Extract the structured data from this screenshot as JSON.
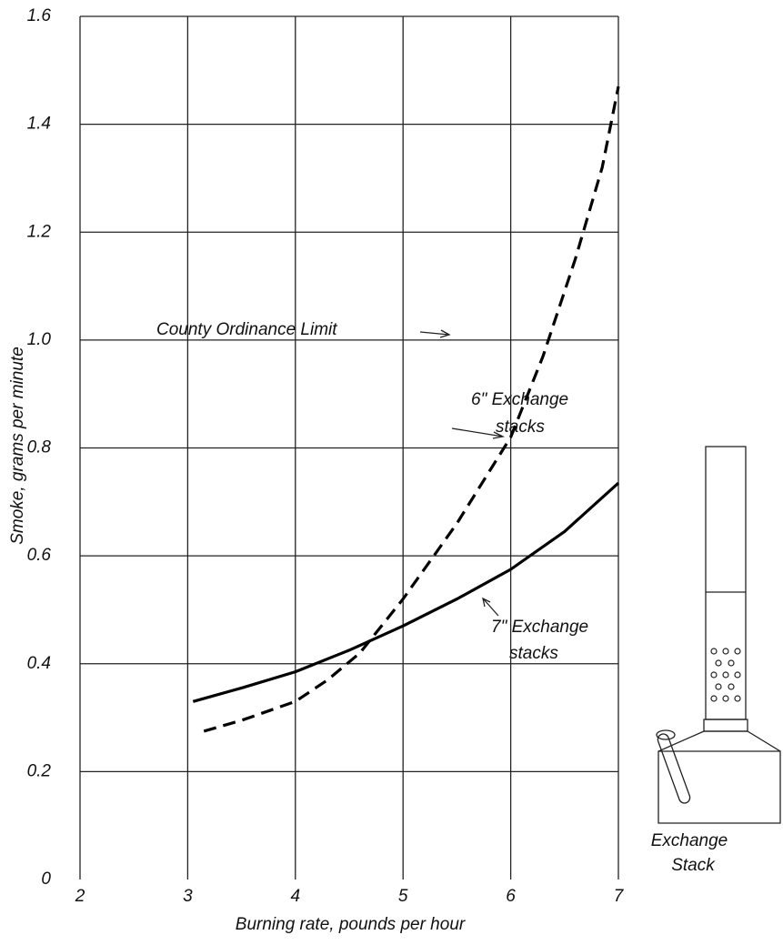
{
  "chart_data": {
    "type": "line",
    "x_label": "Burning rate, pounds per hour",
    "y_label": "Smoke, grams per minute",
    "xlim": [
      2,
      7
    ],
    "xticks": [
      2,
      3,
      4,
      5,
      6,
      7
    ],
    "ylim": [
      0,
      1.6
    ],
    "yticks": [
      0,
      0.2,
      0.4,
      0.6,
      0.8,
      {
        "value": 1,
        "label": "1.0"
      },
      1.2,
      1.4,
      1.6
    ],
    "grid": true,
    "series": [
      {
        "style": "solid",
        "color": "#000000",
        "x": [
          3.05,
          3.5,
          4,
          4.5,
          5,
          5.5,
          6,
          6.5,
          7
        ],
        "values": [
          0.33,
          0.355,
          0.385,
          0.425,
          0.47,
          0.52,
          0.575,
          0.645,
          0.735
        ]
      },
      {
        "style": "dashed",
        "color": "#000000",
        "x": [
          3.15,
          3.5,
          4,
          4.3,
          4.6,
          5,
          5.5,
          6,
          6.3,
          6.6,
          6.85,
          7
        ],
        "values": [
          0.275,
          0.295,
          0.33,
          0.37,
          0.42,
          0.52,
          0.66,
          0.82,
          0.97,
          1.15,
          1.32,
          1.47
        ]
      }
    ],
    "annotations": [
      {
        "lines": [
          "County  Ordinance Limit"
        ]
      },
      {
        "lines": [
          "6\" Exchange",
          "stacks"
        ]
      },
      {
        "lines": [
          "7\" Exchange",
          "stacks"
        ]
      },
      {
        "lines": [
          "Exchange",
          "Stack"
        ]
      }
    ]
  }
}
